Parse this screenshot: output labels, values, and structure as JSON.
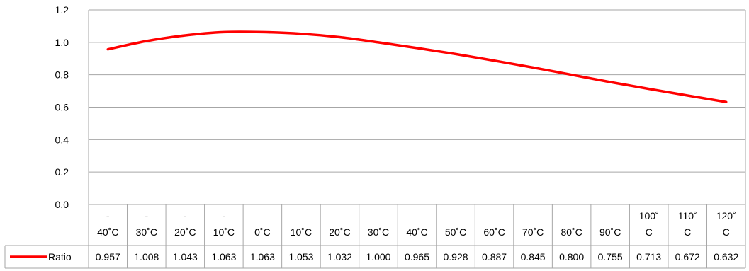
{
  "chart_data": {
    "type": "line",
    "title": "",
    "xlabel": "",
    "ylabel": "",
    "ylim": [
      0,
      1.2
    ],
    "yticks": [
      "0.0",
      "0.2",
      "0.4",
      "0.6",
      "0.8",
      "1.0",
      "1.2"
    ],
    "grid": true,
    "legend": "data-table-row",
    "categories": [
      {
        "line1": "-",
        "line2": "40˚C"
      },
      {
        "line1": "-",
        "line2": "30˚C"
      },
      {
        "line1": "-",
        "line2": "20˚C"
      },
      {
        "line1": "-",
        "line2": "10˚C"
      },
      {
        "line1": "",
        "line2": "0˚C"
      },
      {
        "line1": "",
        "line2": "10˚C"
      },
      {
        "line1": "",
        "line2": "20˚C"
      },
      {
        "line1": "",
        "line2": "30˚C"
      },
      {
        "line1": "",
        "line2": "40˚C"
      },
      {
        "line1": "",
        "line2": "50˚C"
      },
      {
        "line1": "",
        "line2": "60˚C"
      },
      {
        "line1": "",
        "line2": "70˚C"
      },
      {
        "line1": "",
        "line2": "80˚C"
      },
      {
        "line1": "",
        "line2": "90˚C"
      },
      {
        "line1": "100˚",
        "line2": "C"
      },
      {
        "line1": "110˚",
        "line2": "C"
      },
      {
        "line1": "120˚",
        "line2": "C"
      }
    ],
    "series": [
      {
        "name": "Ratio",
        "color": "#ff0000",
        "values": [
          0.957,
          1.008,
          1.043,
          1.063,
          1.063,
          1.053,
          1.032,
          1.0,
          0.965,
          0.928,
          0.887,
          0.845,
          0.8,
          0.755,
          0.713,
          0.672,
          0.632
        ],
        "labels": [
          "0.957",
          "1.008",
          "1.043",
          "1.063",
          "1.063",
          "1.053",
          "1.032",
          "1.000",
          "0.965",
          "0.928",
          "0.887",
          "0.845",
          "0.800",
          "0.755",
          "0.713",
          "0.672",
          "0.632"
        ]
      }
    ]
  }
}
